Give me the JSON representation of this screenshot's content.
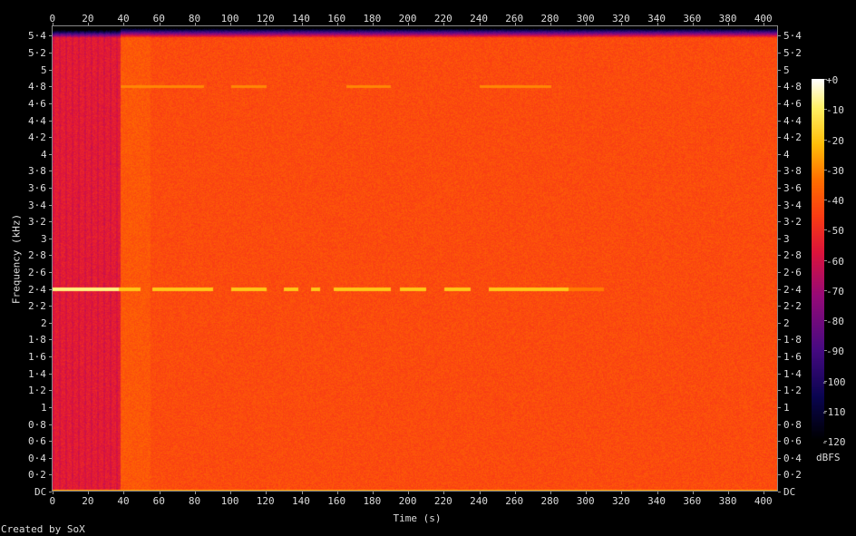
{
  "chart_data": {
    "type": "heatmap",
    "title": "",
    "xlabel": "Time (s)",
    "ylabel": "Frequency (kHz)",
    "xlim": [
      0,
      408
    ],
    "ylim": [
      0,
      5.5125
    ],
    "x_ticks": [
      "0",
      "20",
      "40",
      "60",
      "80",
      "100",
      "120",
      "140",
      "160",
      "180",
      "200",
      "220",
      "240",
      "260",
      "280",
      "300",
      "320",
      "340",
      "360",
      "380",
      "400"
    ],
    "y_ticks": [
      "DC",
      "0·2",
      "0·4",
      "0·6",
      "0·8",
      "1",
      "1·2",
      "1·4",
      "1·6",
      "1·8",
      "2",
      "2·2",
      "2·4",
      "2·6",
      "2·8",
      "3",
      "3·2",
      "3·4",
      "3·6",
      "3·8",
      "4",
      "4·2",
      "4·4",
      "4·6",
      "4·8",
      "5",
      "5·2",
      "5·4"
    ],
    "colorbar": {
      "unit": "dBFS",
      "range": [
        -120,
        0
      ],
      "ticks": [
        "+0",
        "-10",
        "-20",
        "-30",
        "-40",
        "-50",
        "-60",
        "-70",
        "-80",
        "-90",
        "-100",
        "-110",
        "-120"
      ]
    },
    "features": {
      "noise_floor_dbfs_after_38s": -42,
      "noise_floor_dbfs_before_38s": -55,
      "tone_khz": 2.4,
      "tone_segments_s": [
        [
          0,
          49
        ],
        [
          56,
          90
        ],
        [
          100,
          120
        ],
        [
          130,
          138
        ],
        [
          145,
          150
        ],
        [
          158,
          190
        ],
        [
          195,
          210
        ],
        [
          220,
          235
        ],
        [
          245,
          310
        ]
      ],
      "faint_tone_khz": 4.8
    },
    "credit": "Created by SoX"
  }
}
